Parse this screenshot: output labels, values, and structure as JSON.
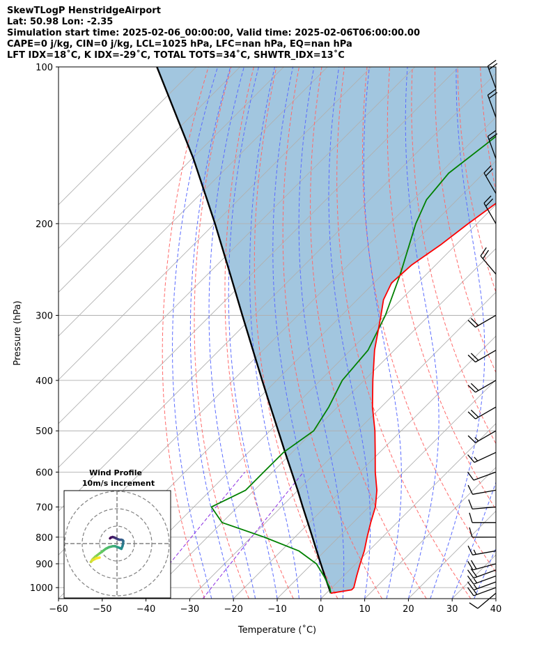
{
  "header": {
    "line1": "SkewTLogP HenstridgeAirport",
    "line2": "Lat: 50.98   Lon: -2.35",
    "line3": "Simulation start time: 2025-02-06_00:00:00, Valid time: 2025-02-06T06:00:00.00",
    "line4": "CAPE=0 j/kg, CIN=0 j/kg, LCL=1025 hPa, LFC=nan hPa, EQ=nan hPa",
    "line5": "LFT IDX=18˚C, K IDX=-29˚C, TOTAL TOTS=34˚C, SHWTR_IDX=13˚C"
  },
  "chart_data": {
    "type": "line",
    "xlabel": "Temperature (˚C)",
    "ylabel": "Pressure (hPa)",
    "xlim": [
      -60,
      40
    ],
    "ylim": [
      1050,
      100
    ],
    "yscale": "log",
    "skew": true,
    "x_ticks": [
      "−60",
      "−50",
      "−40",
      "−30",
      "−20",
      "−10",
      "0",
      "10",
      "20",
      "30",
      "40"
    ],
    "y_ticks": [
      "100",
      "200",
      "300",
      "400",
      "500",
      "600",
      "700",
      "800",
      "900",
      "1000"
    ],
    "colors": {
      "temperature": "#ff0000",
      "dewpoint": "#008000",
      "parcel": "#000000",
      "shading": "#a2c6df",
      "dry_adiabats": "#ff6a6a",
      "moist_adiabats": "#5b6cff",
      "mixing_ratio": "#8a2be2",
      "isotherms": "#b0b0b0"
    },
    "series": [
      {
        "id": "temperature",
        "pressure": [
          1025,
          1010,
          1000,
          950,
          900,
          850,
          800,
          750,
          700,
          650,
          600,
          550,
          500,
          450,
          400,
          350,
          300,
          280,
          260,
          240,
          220,
          200,
          180,
          160,
          140,
          120,
          100
        ],
        "values": [
          1.0,
          5.0,
          5.0,
          3.0,
          1.0,
          -1.0,
          -3.5,
          -6.0,
          -8.5,
          -12.0,
          -16.5,
          -21.0,
          -26.0,
          -32.0,
          -38.0,
          -44.5,
          -51.0,
          -54.0,
          -56.0,
          -55.5,
          -53.5,
          -52.0,
          -50.0,
          -48.0,
          -48.0,
          -49.0,
          -51.0
        ]
      },
      {
        "id": "dewpoint",
        "pressure": [
          1025,
          1000,
          950,
          900,
          850,
          800,
          750,
          700,
          650,
          600,
          550,
          500,
          450,
          400,
          350,
          300,
          250,
          200,
          180,
          160,
          140,
          120,
          100
        ],
        "values": [
          1.0,
          -0.5,
          -4.5,
          -9.0,
          -16.0,
          -27.0,
          -40.0,
          -46.0,
          -42.0,
          -42.0,
          -42.0,
          -40.0,
          -42.0,
          -45.0,
          -46.0,
          -50.0,
          -56.0,
          -64.0,
          -67.0,
          -68.0,
          -66.0,
          -64.0,
          -64.0
        ]
      },
      {
        "id": "parcel",
        "pressure": [
          1025,
          1000,
          950,
          900,
          850,
          800,
          750,
          700,
          650,
          600,
          550,
          500,
          450,
          400,
          350,
          300,
          250,
          200,
          150,
          100
        ],
        "values": [
          1.0,
          -0.7,
          -4.3,
          -8.0,
          -11.9,
          -16.0,
          -20.4,
          -25.1,
          -30.1,
          -35.6,
          -41.6,
          -48.1,
          -55.3,
          -63.3,
          -72.3,
          -82.7,
          -94.9,
          -109.9,
          -129.7,
          -159.0
        ]
      }
    ],
    "wind_barbs": {
      "pressure": [
        1025,
        1000,
        975,
        950,
        925,
        900,
        850,
        800,
        750,
        700,
        650,
        600,
        550,
        500,
        450,
        400,
        350,
        300,
        250,
        200,
        175,
        150,
        125,
        110
      ],
      "direction_deg": [
        230,
        250,
        250,
        250,
        250,
        255,
        260,
        270,
        270,
        265,
        260,
        250,
        245,
        240,
        240,
        240,
        240,
        240,
        320,
        330,
        330,
        340,
        340,
        340
      ],
      "speed_kt": [
        10,
        15,
        15,
        15,
        20,
        20,
        15,
        10,
        10,
        10,
        10,
        10,
        15,
        15,
        20,
        20,
        20,
        20,
        20,
        20,
        20,
        20,
        20,
        20
      ]
    },
    "inset": {
      "title_line1": "Wind Profile",
      "title_line2": "10m/s increment",
      "colormap": "viridis",
      "u": [
        -4.0,
        -3.5,
        -2.5,
        -1.5,
        -0.5,
        0.5,
        1.5,
        2.5,
        3.2,
        3.6,
        3.5,
        3.1,
        2.5,
        1.5,
        0.2,
        -1.0,
        -2.5,
        -4.5,
        -6.5,
        -8.5,
        -10.5,
        -12.5,
        -14.0,
        -15.0,
        -14.0,
        -12.0,
        -10.0
      ],
      "v": [
        3.0,
        3.5,
        3.8,
        3.5,
        3.0,
        2.5,
        2.2,
        2.2,
        2.0,
        1.5,
        0.0,
        -1.5,
        -3.0,
        -2.5,
        -2.0,
        -1.5,
        -1.5,
        -2.0,
        -3.0,
        -4.5,
        -6.0,
        -7.5,
        -9.0,
        -10.5,
        -9.5,
        -8.5,
        -8.0
      ]
    }
  }
}
